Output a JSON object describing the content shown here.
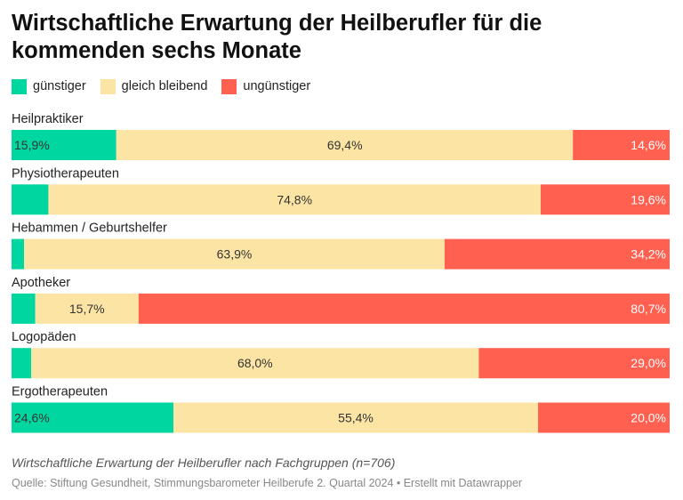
{
  "title": "Wirtschaftliche Erwartung der Heilberufler für die kommenden sechs Monate",
  "legend": [
    {
      "label": "günstiger",
      "color": "#00d6a0"
    },
    {
      "label": "gleich bleibend",
      "color": "#fce5a4"
    },
    {
      "label": "ungünstiger",
      "color": "#ff6050"
    }
  ],
  "chart_data": {
    "type": "bar",
    "orientation": "horizontal",
    "stacked": true,
    "xlim": [
      0,
      100
    ],
    "unit": "%",
    "categories": [
      "Heilpraktiker",
      "Physiotherapeuten",
      "Hebammen / Geburtshelfer",
      "Apotheker",
      "Logopäden",
      "Ergotherapeuten"
    ],
    "series": [
      {
        "name": "günstiger",
        "color": "#00d6a0",
        "values": [
          15.9,
          5.6,
          1.9,
          3.6,
          3.0,
          24.6
        ],
        "labels": [
          "15,9%",
          "",
          "",
          "",
          "",
          "24,6%"
        ]
      },
      {
        "name": "gleich bleibend",
        "color": "#fce5a4",
        "values": [
          69.4,
          74.8,
          63.9,
          15.7,
          68.0,
          55.4
        ],
        "labels": [
          "69,4%",
          "74,8%",
          "63,9%",
          "15,7%",
          "68,0%",
          "55,4%"
        ]
      },
      {
        "name": "ungünstiger",
        "color": "#ff6050",
        "values": [
          14.6,
          19.6,
          34.2,
          80.7,
          29.0,
          20.0
        ],
        "labels": [
          "14,6%",
          "19,6%",
          "34,2%",
          "80,7%",
          "29,0%",
          "20,0%"
        ]
      }
    ]
  },
  "description": "Wirtschaftliche Erwartung der Heilberufler nach Fachgruppen (n=706)",
  "source": "Quelle: Stiftung Gesundheit, Stimmungsbarometer Heilberufe 2. Quartal 2024 • Erstellt mit Datawrapper"
}
